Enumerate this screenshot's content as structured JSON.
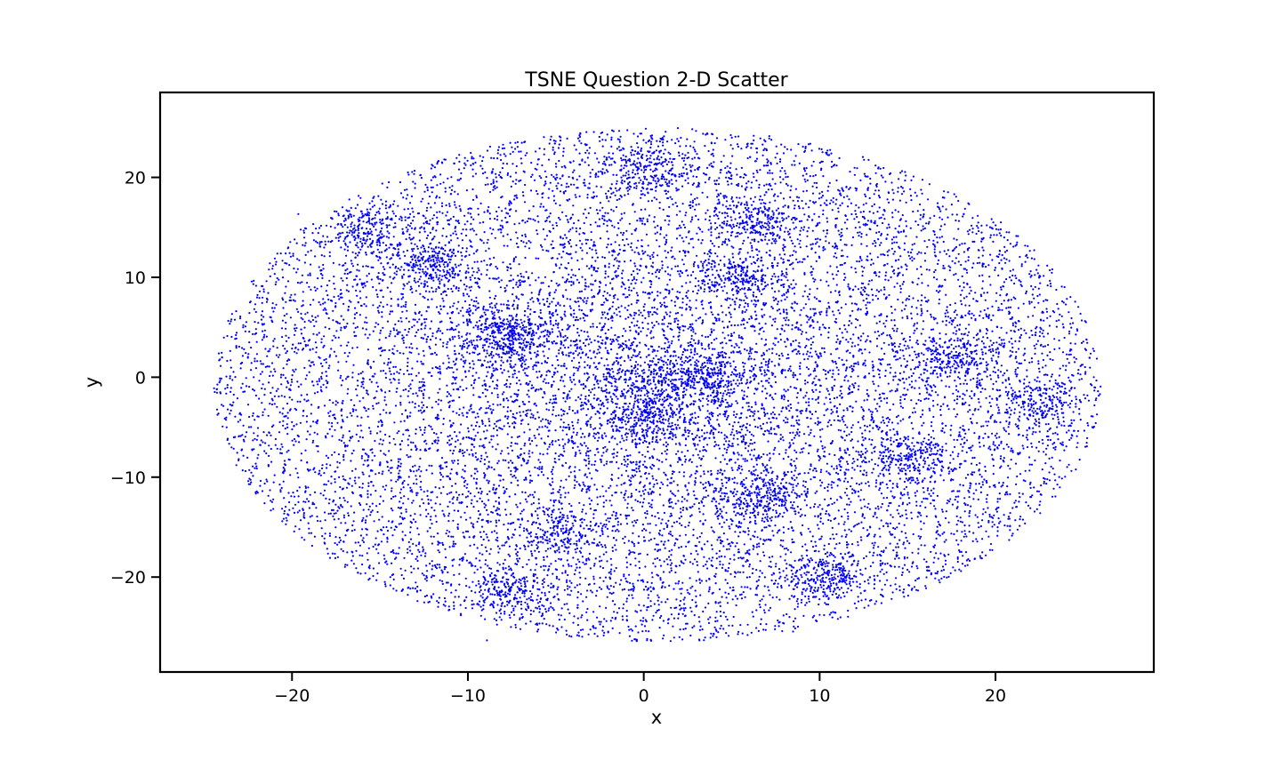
{
  "chart_data": {
    "type": "scatter",
    "title": "TSNE Question 2-D Scatter",
    "xlabel": "x",
    "ylabel": "y",
    "xlim": [
      -27.5,
      29.0
    ],
    "ylim": [
      -29.5,
      28.5
    ],
    "xticks": [
      -20,
      -10,
      0,
      10,
      20
    ],
    "yticks": [
      -20,
      -10,
      0,
      10,
      20
    ],
    "xtick_labels": [
      "−20",
      "−10",
      "0",
      "10",
      "20"
    ],
    "ytick_labels": [
      "−20",
      "−10",
      "0",
      "10",
      "20"
    ],
    "grid": false,
    "legend": "none",
    "marker_color": "#0000ff",
    "point_distribution": {
      "approx_count": 16000,
      "x_range": [
        -25,
        26.5
      ],
      "y_range": [
        -27,
        25.5
      ],
      "shape": "ellipse",
      "dense_clusters": [
        {
          "x": -15.5,
          "y": 14.5
        },
        {
          "x": -12,
          "y": 11
        },
        {
          "x": -8,
          "y": 5
        },
        {
          "x": -7.5,
          "y": 3
        },
        {
          "x": 0,
          "y": -4
        },
        {
          "x": 3.5,
          "y": 0
        },
        {
          "x": 5.5,
          "y": 10
        },
        {
          "x": 6.5,
          "y": 15.5
        },
        {
          "x": 6.5,
          "y": -12
        },
        {
          "x": 10.5,
          "y": -20
        },
        {
          "x": -4.5,
          "y": -16
        },
        {
          "x": -7.5,
          "y": -21.5
        },
        {
          "x": 0,
          "y": 21
        },
        {
          "x": 22.5,
          "y": -2.5
        },
        {
          "x": 15,
          "y": -8
        },
        {
          "x": 18,
          "y": 2
        }
      ]
    }
  }
}
